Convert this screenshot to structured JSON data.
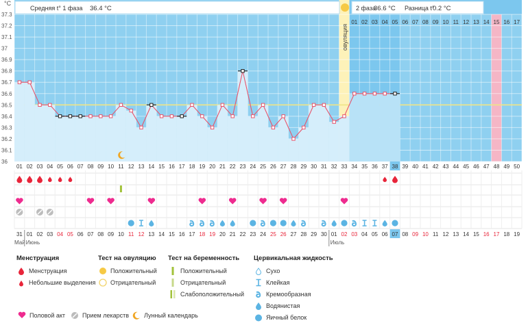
{
  "chart_data": {
    "type": "line",
    "unit_label": "°C",
    "y_ticks": [
      "36",
      "36.1",
      "36.2",
      "36.3",
      "36.4",
      "36.5",
      "36.6",
      "36.7",
      "36.8",
      "36.9",
      "37",
      "37.1",
      "37.2",
      "37.3"
    ],
    "ylim": [
      36,
      37.3
    ],
    "cycle_days": [
      "01",
      "02",
      "03",
      "04",
      "05",
      "06",
      "07",
      "08",
      "09",
      "10",
      "11",
      "12",
      "13",
      "14",
      "15",
      "16",
      "17",
      "18",
      "19",
      "20",
      "21",
      "22",
      "23",
      "24",
      "25",
      "26",
      "27",
      "28",
      "29",
      "30",
      "31",
      "32",
      "33",
      "34",
      "35",
      "36",
      "37",
      "38",
      "39",
      "40",
      "41",
      "42",
      "43",
      "44",
      "45",
      "46",
      "47",
      "48",
      "49",
      "50"
    ],
    "temperatures": [
      36.7,
      36.7,
      36.5,
      36.5,
      36.4,
      36.4,
      36.4,
      36.4,
      36.4,
      36.4,
      36.5,
      36.45,
      36.3,
      36.5,
      36.4,
      36.4,
      36.4,
      36.5,
      36.4,
      36.3,
      36.5,
      36.4,
      36.8,
      36.4,
      36.5,
      36.3,
      36.4,
      36.2,
      36.3,
      36.5,
      36.5,
      36.35,
      36.4,
      36.6,
      36.6,
      36.6,
      36.6,
      36.6
    ],
    "black_markers": [
      5,
      6,
      7,
      14,
      17,
      23,
      38
    ],
    "coverline": 36.5,
    "ovulation_day": 33,
    "ovulation_label": "овуляция",
    "phase1_label": "Средняя t° 1 фаза",
    "phase1_value": "36.4 °C",
    "phase2_label": "2 фаза",
    "phase2_value": "36.6 °C",
    "difference_label": "Разница t°",
    "difference_value": "0.2 °C",
    "phase2_day_numbers": [
      "01",
      "02",
      "03",
      "04",
      "05",
      "06",
      "07",
      "08",
      "09",
      "10",
      "11",
      "12",
      "13",
      "14",
      "15",
      "16",
      "17"
    ],
    "highlight_phase2_index": 14,
    "current_day": 38,
    "calendar_dates": [
      "31",
      "01",
      "02",
      "03",
      "04",
      "05",
      "06",
      "07",
      "08",
      "09",
      "10",
      "11",
      "12",
      "13",
      "14",
      "15",
      "16",
      "17",
      "18",
      "19",
      "20",
      "21",
      "22",
      "23",
      "24",
      "25",
      "26",
      "27",
      "28",
      "29",
      "30",
      "01",
      "02",
      "03",
      "04",
      "05",
      "06",
      "07",
      "08",
      "09",
      "10",
      "11",
      "12",
      "13",
      "14",
      "15",
      "16",
      "17",
      "18",
      "19"
    ],
    "weekend_dates": [
      5,
      6,
      12,
      13,
      19,
      20,
      26,
      27,
      33,
      34,
      40,
      41,
      47,
      48
    ],
    "month_labels": [
      {
        "text": "Май",
        "index": 0
      },
      {
        "text": "Июнь",
        "index": 1
      },
      {
        "text": "Июль",
        "index": 31
      }
    ],
    "menstruation": [
      {
        "day": 1,
        "type": "full"
      },
      {
        "day": 2,
        "type": "full"
      },
      {
        "day": 3,
        "type": "full"
      },
      {
        "day": 4,
        "type": "light"
      },
      {
        "day": 5,
        "type": "light"
      },
      {
        "day": 6,
        "type": "light"
      },
      {
        "day": 37,
        "type": "light"
      },
      {
        "day": 38,
        "type": "full"
      }
    ],
    "pregnancy_test": [
      {
        "day": 11,
        "type": "positive"
      }
    ],
    "intercourse": [
      1,
      8,
      10,
      14,
      19,
      22,
      25,
      27,
      33
    ],
    "medication": [
      1,
      3,
      4
    ],
    "moon": [
      11
    ],
    "fluid": [
      {
        "day": 12,
        "type": "egg"
      },
      {
        "day": 13,
        "type": "sticky"
      },
      {
        "day": 14,
        "type": "watery"
      },
      {
        "day": 18,
        "type": "creamy"
      },
      {
        "day": 19,
        "type": "creamy"
      },
      {
        "day": 20,
        "type": "creamy"
      },
      {
        "day": 21,
        "type": "watery"
      },
      {
        "day": 22,
        "type": "watery"
      },
      {
        "day": 24,
        "type": "egg"
      },
      {
        "day": 25,
        "type": "creamy"
      },
      {
        "day": 26,
        "type": "egg"
      },
      {
        "day": 27,
        "type": "egg"
      },
      {
        "day": 28,
        "type": "watery"
      },
      {
        "day": 29,
        "type": "creamy"
      },
      {
        "day": 31,
        "type": "creamy"
      },
      {
        "day": 32,
        "type": "watery"
      },
      {
        "day": 33,
        "type": "egg"
      },
      {
        "day": 34,
        "type": "creamy"
      },
      {
        "day": 35,
        "type": "sticky"
      },
      {
        "day": 36,
        "type": "sticky"
      },
      {
        "day": 37,
        "type": "watery"
      },
      {
        "day": 38,
        "type": "egg"
      }
    ],
    "colors": {
      "phase1": "#d5eefb",
      "phase2": "#7cc7ee",
      "header": "#8fd0f0",
      "line": "#e8546b",
      "ovulation": "#fdf2b9",
      "highlight": "#f5b6c6",
      "coverline": "#f0e585",
      "drop": "#e8253a",
      "heart": "#ee2b8f",
      "green": "#a2c23a",
      "fluid": "#5bb4e3"
    }
  },
  "legend": {
    "menstruation": {
      "title": "Менструация",
      "items": [
        "Менструация",
        "Небольшие выделения"
      ]
    },
    "ovulation_test": {
      "title": "Тест на овуляцию",
      "items": [
        "Положительный",
        "Отрицательный"
      ]
    },
    "pregnancy_test": {
      "title": "Тест на беременность",
      "items": [
        "Положительный",
        "Отрицательный",
        "Слабоположительный"
      ]
    },
    "cervical": {
      "title": "Цервикальная жидкость",
      "items": [
        "Сухо",
        "Клейкая",
        "Кремообразная",
        "Водянистая",
        "Яичный белок"
      ]
    },
    "bottom": [
      "Половой акт",
      "Прием лекарств",
      "Лунный календарь"
    ]
  }
}
